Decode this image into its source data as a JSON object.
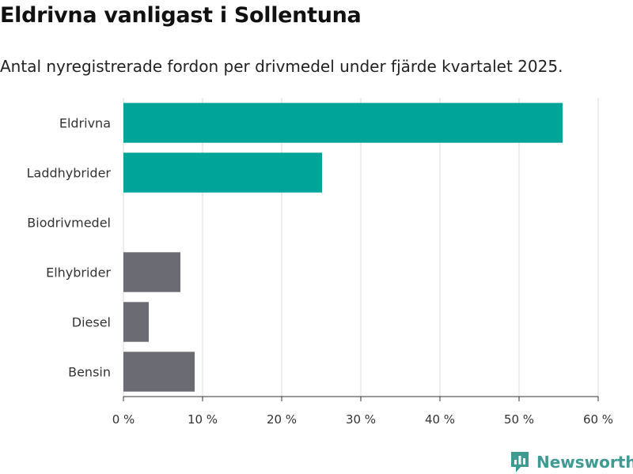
{
  "header": {
    "title": "Eldrivna vanligast i Sollentuna",
    "subtitle": "Antal nyregistrerade fordon per drivmedel under fjärde kvartalet 2025."
  },
  "brand": {
    "name": "Newsworthy"
  },
  "colors": {
    "highlight": "#00a499",
    "muted": "#6b6b73",
    "grid": "#d9d9d9",
    "brand": "#3f9a92"
  },
  "chart_data": {
    "type": "bar",
    "orientation": "horizontal",
    "title": "Eldrivna vanligast i Sollentuna",
    "subtitle": "Antal nyregistrerade fordon per drivmedel under fjärde kvartalet 2025.",
    "categories": [
      "Eldrivna",
      "Laddhybrider",
      "Biodrivmedel",
      "Elhybrider",
      "Diesel",
      "Bensin"
    ],
    "values": [
      55.5,
      25.1,
      0,
      7.2,
      3.2,
      9.0
    ],
    "highlighted": [
      true,
      true,
      false,
      false,
      false,
      false
    ],
    "xlabel": "",
    "ylabel": "",
    "xlim": [
      0,
      60
    ],
    "xticks": [
      0,
      10,
      20,
      30,
      40,
      50,
      60
    ],
    "xtick_labels": [
      "0 %",
      "10 %",
      "20 %",
      "30 %",
      "40 %",
      "50 %",
      "60 %"
    ],
    "grid": true,
    "legend": "none"
  }
}
